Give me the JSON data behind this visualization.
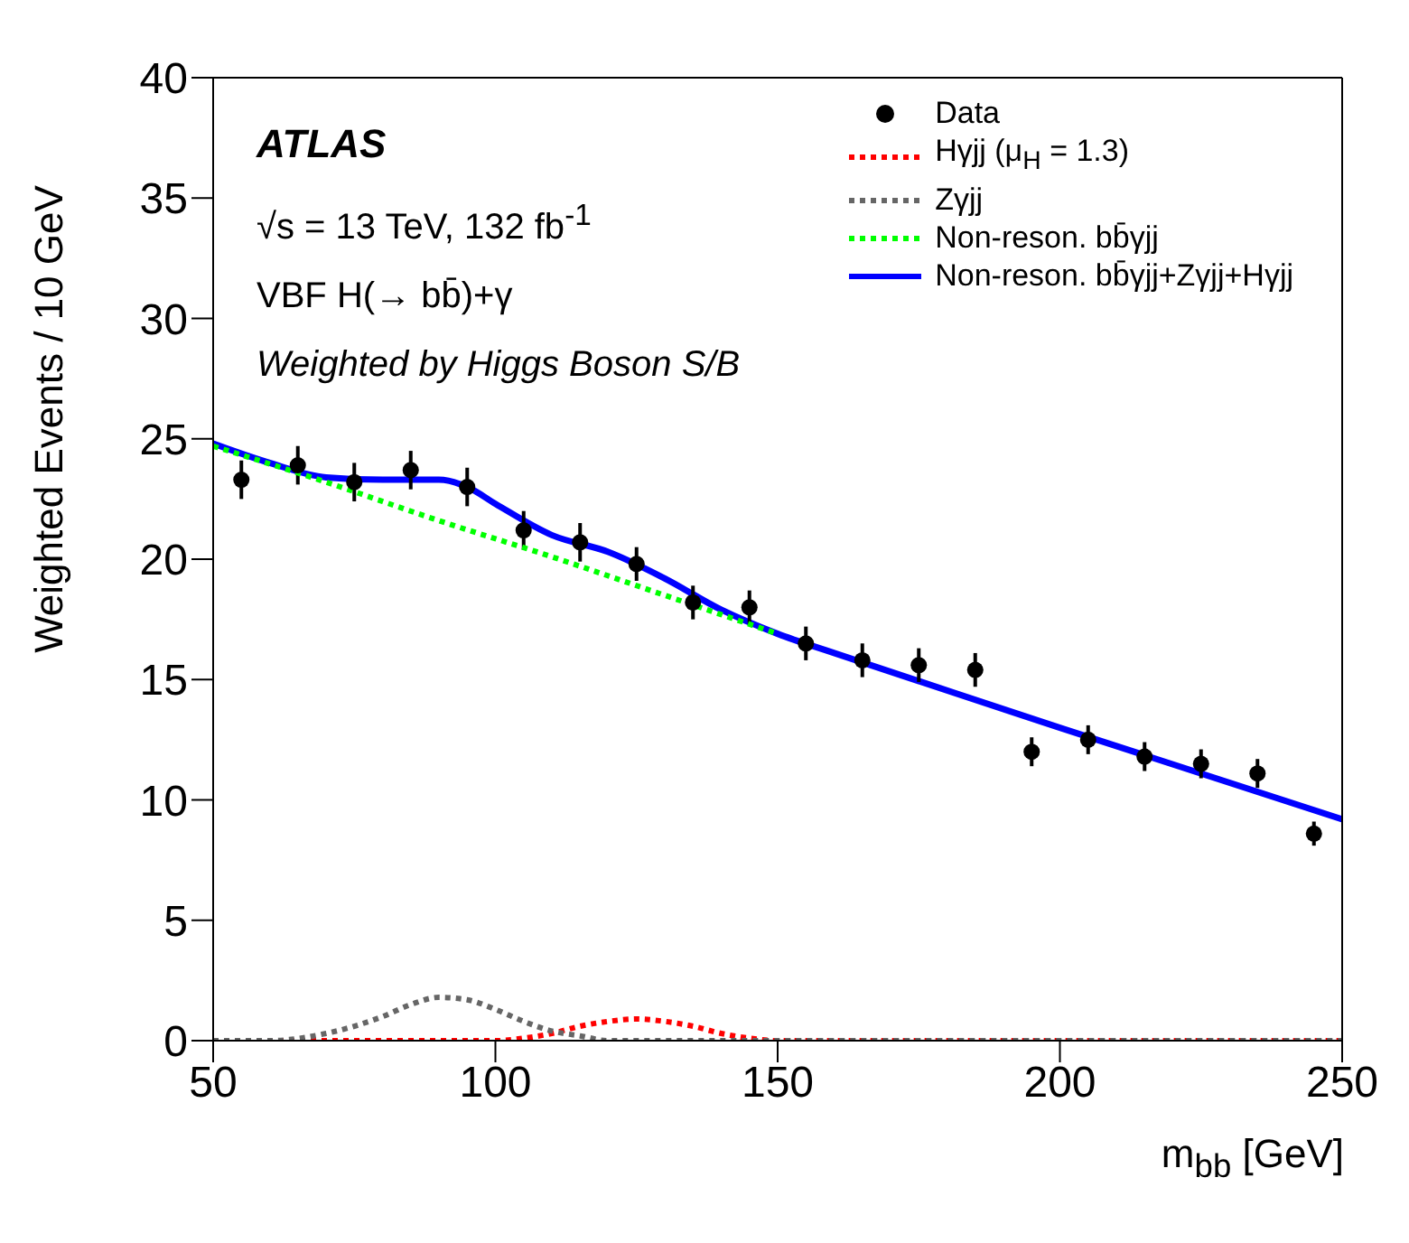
{
  "chart_data": {
    "type": "scatter",
    "xlabel": "m$_{bb}$ [GeV]",
    "ylabel": "Weighted Events / 10 GeV",
    "annotations": [
      "ATLAS",
      "√s = 13 TeV, 132 fb$^{-1}$",
      "VBF H(→ bb̄)+γ",
      "Weighted by Higgs Boson S/B"
    ],
    "xlim": [
      50,
      250
    ],
    "xticks": [
      50,
      100,
      150,
      200,
      250
    ],
    "ylim": [
      0,
      40
    ],
    "yticks": [
      0,
      5,
      10,
      15,
      20,
      25,
      30,
      35,
      40
    ],
    "grid": false,
    "legend": "top right",
    "series": [
      {
        "name": "Data",
        "marker": "circle",
        "color": "#000000",
        "x": [
          55,
          65,
          75,
          85,
          95,
          105,
          115,
          125,
          135,
          145,
          155,
          165,
          175,
          185,
          195,
          205,
          215,
          225,
          235,
          245
        ],
        "values": [
          23.3,
          23.9,
          23.2,
          23.7,
          23.0,
          21.2,
          20.7,
          19.8,
          18.2,
          18.0,
          16.5,
          15.8,
          15.6,
          15.4,
          12.0,
          12.5,
          11.8,
          11.5,
          11.1,
          8.6
        ],
        "errors": [
          0.8,
          0.8,
          0.8,
          0.8,
          0.8,
          0.8,
          0.8,
          0.7,
          0.7,
          0.7,
          0.7,
          0.7,
          0.7,
          0.7,
          0.6,
          0.6,
          0.6,
          0.6,
          0.6,
          0.5
        ]
      },
      {
        "name": "Hγjj (μ$_{H}$ = 1.3)",
        "type": "line",
        "line_style": "dotted",
        "color": "#ff0000",
        "x": [
          50,
          100,
          105,
          110,
          115,
          120,
          125,
          130,
          135,
          140,
          145,
          150,
          155,
          250
        ],
        "values": [
          0,
          0,
          0.1,
          0.3,
          0.6,
          0.8,
          0.9,
          0.8,
          0.6,
          0.3,
          0.1,
          0,
          0,
          0
        ]
      },
      {
        "name": "Zγjj",
        "type": "line",
        "line_style": "dotted",
        "color": "#666666",
        "x": [
          50,
          60,
          70,
          75,
          80,
          85,
          90,
          95,
          100,
          105,
          110,
          115,
          120,
          125,
          250
        ],
        "values": [
          0,
          0,
          0.3,
          0.6,
          1.0,
          1.5,
          1.8,
          1.7,
          1.3,
          0.8,
          0.4,
          0.2,
          0,
          0,
          0
        ]
      },
      {
        "name": "Non-reson. bb̄γjj",
        "type": "line",
        "line_style": "dotted",
        "color": "#00ff00",
        "x": [
          50,
          70,
          90,
          110,
          130,
          150
        ],
        "values": [
          24.7,
          23.2,
          21.6,
          20.1,
          18.5,
          16.9
        ]
      },
      {
        "name": "Non-reson. bb̄γjj+Zγjj+Hγjj",
        "type": "line",
        "line_style": "solid",
        "color": "#0000ff",
        "x": [
          50,
          60,
          70,
          80,
          90,
          95,
          100,
          110,
          120,
          130,
          140,
          150,
          160,
          200,
          250
        ],
        "values": [
          24.8,
          24.0,
          23.4,
          23.3,
          23.3,
          23.0,
          22.3,
          21.0,
          20.3,
          19.2,
          17.9,
          16.9,
          16.1,
          13.0,
          9.2
        ]
      }
    ]
  }
}
